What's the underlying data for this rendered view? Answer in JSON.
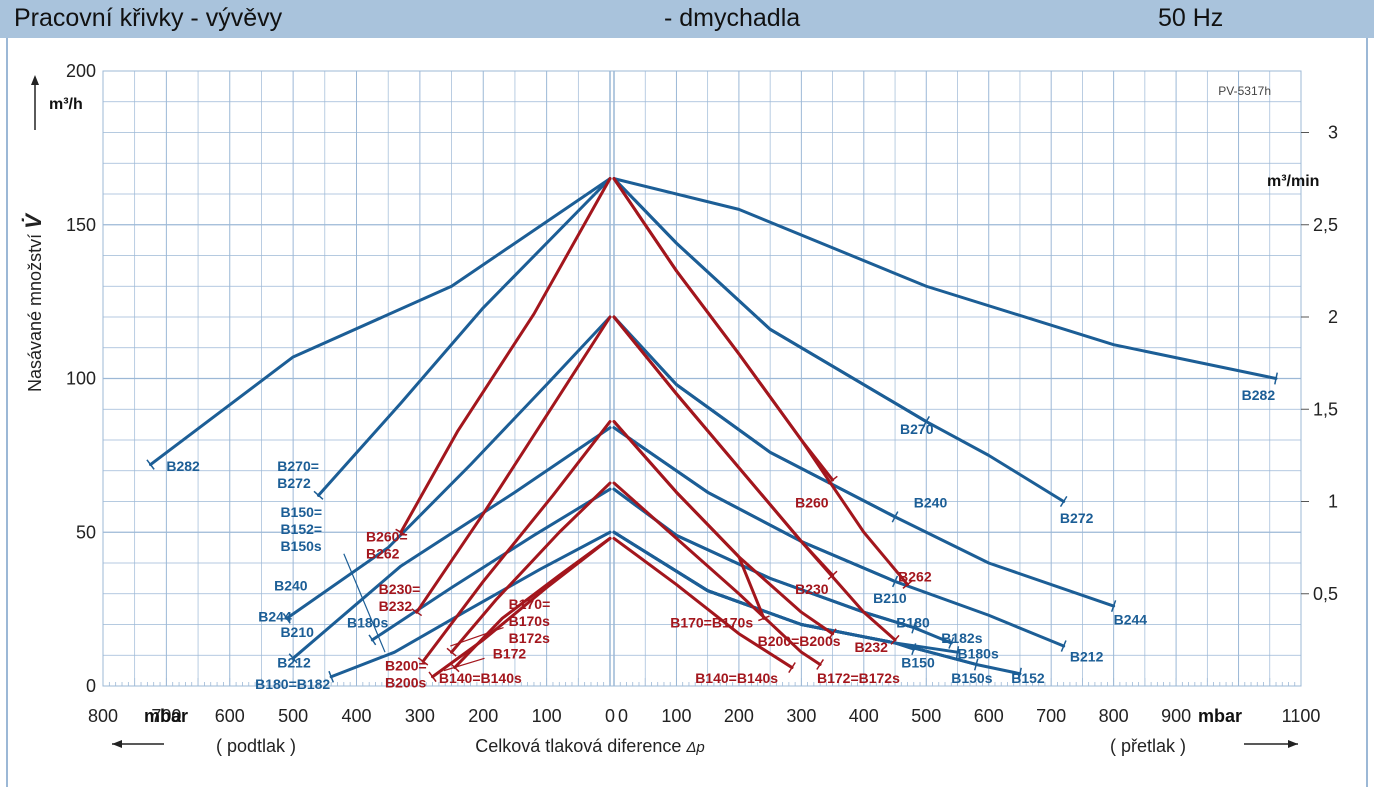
{
  "header": {
    "title_left": "Pracovní křivky  -  vývěvy",
    "title_mid": "-  dmychadla",
    "frequency": "50 Hz"
  },
  "chart_data": {
    "type": "line",
    "code": "PV-5317h",
    "ylabel": "Nasávané množství",
    "ylabel_symbol": "V̇",
    "ylabel_unit": "m³/h",
    "ylabel_right_unit": "m³/min",
    "xlabel": "Celková tlaková diference",
    "xlabel_symbol": "Δp",
    "x_unit": "mbar",
    "left_region": "( podtlak )",
    "right_region": "( přetlak )",
    "left_xlim": [
      800,
      0
    ],
    "right_xlim": [
      0,
      1100
    ],
    "ylim": [
      0,
      200
    ],
    "left_xticks": [
      "800",
      "700",
      "600",
      "500",
      "400",
      "300",
      "200",
      "100",
      "0"
    ],
    "right_xticks": [
      "0",
      "100",
      "200",
      "300",
      "400",
      "500",
      "600",
      "700",
      "800",
      "900",
      "1100"
    ],
    "yticks": [
      "0",
      "50",
      "100",
      "150",
      "200"
    ],
    "yticks_right": [
      "0,5",
      "1",
      "1,5",
      "2",
      "2,5",
      "3"
    ],
    "colors": {
      "blue": "#1c5e96",
      "red": "#a3161d",
      "grid": "#9cb8d6",
      "frame": "#1c5e96"
    },
    "vacuum_series": [
      {
        "name": "B282",
        "color": "blue",
        "points": [
          [
            0,
            165
          ],
          [
            250,
            130
          ],
          [
            500,
            107
          ],
          [
            725,
            72
          ]
        ],
        "label": "B282",
        "label_at": [
          700,
          70
        ]
      },
      {
        "name": "B270=B272",
        "color": "blue",
        "points": [
          [
            0,
            165
          ],
          [
            200,
            123
          ],
          [
            330,
            92
          ],
          [
            460,
            62
          ]
        ],
        "label_lines": [
          "B270=",
          "B272"
        ],
        "label_at": [
          525,
          70
        ]
      },
      {
        "name": "B240/B244",
        "color": "blue",
        "points": [
          [
            0,
            120
          ],
          [
            100,
            98
          ],
          [
            220,
            72
          ],
          [
            350,
            45
          ],
          [
            510,
            22
          ]
        ],
        "label": "B240",
        "label_at": [
          530,
          31
        ],
        "label2": "B244",
        "label2_at": [
          555,
          21
        ]
      },
      {
        "name": "B210/B212",
        "color": "blue",
        "points": [
          [
            0,
            84
          ],
          [
            150,
            63
          ],
          [
            330,
            39
          ],
          [
            500,
            9
          ]
        ],
        "label": "B210",
        "label_at": [
          520,
          16
        ],
        "label2": "B212",
        "label2_at": [
          525,
          6
        ]
      },
      {
        "name": "B150=B152=B150s",
        "color": "blue",
        "points": [
          [
            0,
            64
          ],
          [
            120,
            49
          ],
          [
            250,
            32
          ],
          [
            375,
            15
          ]
        ],
        "label_lines": [
          "B150=",
          "B152=",
          "B150s"
        ],
        "label_at": [
          520,
          55
        ],
        "label2": "B180s",
        "label2_at": [
          415,
          19
        ],
        "leader": [
          [
            420,
            43
          ],
          [
            355,
            11
          ]
        ]
      },
      {
        "name": "B180=B182",
        "color": "blue",
        "points": [
          [
            0,
            50
          ],
          [
            110,
            38
          ],
          [
            230,
            24
          ],
          [
            340,
            11
          ],
          [
            440,
            3
          ]
        ],
        "label": "B180=B182",
        "label_at": [
          560,
          -1
        ]
      },
      {
        "name": "B260=B262",
        "color": "red",
        "points": [
          [
            0,
            165
          ],
          [
            120,
            121
          ],
          [
            240,
            83
          ],
          [
            330,
            50
          ]
        ],
        "label_lines": [
          "B260=",
          "B262"
        ],
        "label_at": [
          385,
          47
        ]
      },
      {
        "name": "B230=B232",
        "color": "red",
        "points": [
          [
            0,
            120
          ],
          [
            100,
            88
          ],
          [
            200,
            56
          ],
          [
            305,
            24
          ]
        ],
        "label_lines": [
          "B230=",
          "B232"
        ],
        "label_at": [
          365,
          30
        ]
      },
      {
        "name": "B200=B200s",
        "color": "red",
        "points": [
          [
            0,
            86
          ],
          [
            90,
            62
          ],
          [
            200,
            34
          ],
          [
            295,
            8
          ]
        ],
        "label_lines": [
          "B200=",
          "B200s"
        ],
        "label_at": [
          355,
          5
        ]
      },
      {
        "name": "B170=B170s=B172s",
        "color": "red",
        "points": [
          [
            0,
            66
          ],
          [
            80,
            50
          ],
          [
            180,
            28
          ],
          [
            250,
            11
          ]
        ],
        "label_lines": [
          "B170=",
          "B170s",
          "B172s"
        ],
        "label_at": [
          160,
          25
        ],
        "leader": [
          [
            168,
            19
          ],
          [
            252,
            13
          ]
        ]
      },
      {
        "name": "B172",
        "color": "red",
        "points": [
          [
            0,
            48
          ],
          [
            80,
            36
          ],
          [
            170,
            22
          ],
          [
            245,
            6
          ]
        ],
        "label": "B172",
        "label_at": [
          185,
          9
        ],
        "leader": [
          [
            198,
            9
          ],
          [
            262,
            5
          ]
        ]
      },
      {
        "name": "B140=B140s",
        "color": "red",
        "points": [
          [
            0,
            48
          ],
          [
            100,
            32
          ],
          [
            200,
            15
          ],
          [
            280,
            3
          ]
        ],
        "label": "B140=B140s",
        "label_at": [
          270,
          1
        ]
      }
    ],
    "pressure_series": [
      {
        "name": "B282",
        "color": "blue",
        "points": [
          [
            0,
            165
          ],
          [
            200,
            155
          ],
          [
            500,
            130
          ],
          [
            800,
            111
          ],
          [
            1060,
            100
          ]
        ],
        "label": "B282",
        "label_at": [
          1005,
          93
        ]
      },
      {
        "name": "B270",
        "color": "blue",
        "points": [
          [
            0,
            165
          ],
          [
            100,
            144
          ],
          [
            250,
            116
          ],
          [
            500,
            86
          ]
        ],
        "label": "B270",
        "label_at": [
          458,
          82
        ]
      },
      {
        "name": "B272",
        "color": "blue",
        "points": [
          [
            0,
            165
          ],
          [
            100,
            144
          ],
          [
            250,
            116
          ],
          [
            500,
            86
          ],
          [
            600,
            75
          ],
          [
            720,
            60
          ]
        ],
        "label": "B272",
        "label_at": [
          714,
          53
        ]
      },
      {
        "name": "B240",
        "color": "blue",
        "points": [
          [
            0,
            120
          ],
          [
            100,
            98
          ],
          [
            250,
            76
          ],
          [
            450,
            55
          ]
        ],
        "label": "B240",
        "label_at": [
          480,
          58
        ]
      },
      {
        "name": "B244",
        "color": "blue",
        "points": [
          [
            0,
            120
          ],
          [
            100,
            98
          ],
          [
            250,
            76
          ],
          [
            450,
            55
          ],
          [
            600,
            40
          ],
          [
            800,
            26
          ]
        ],
        "label": "B244",
        "label_at": [
          800,
          20
        ]
      },
      {
        "name": "B210",
        "color": "blue",
        "points": [
          [
            0,
            84
          ],
          [
            150,
            63
          ],
          [
            300,
            47
          ],
          [
            450,
            34
          ]
        ],
        "label": "B210",
        "label_at": [
          415,
          27
        ]
      },
      {
        "name": "B212",
        "color": "blue",
        "points": [
          [
            0,
            84
          ],
          [
            150,
            63
          ],
          [
            300,
            47
          ],
          [
            450,
            34
          ],
          [
            600,
            23
          ],
          [
            720,
            13
          ]
        ],
        "label": "B212",
        "label_at": [
          730,
          8
        ]
      },
      {
        "name": "B180",
        "color": "blue",
        "points": [
          [
            0,
            64
          ],
          [
            100,
            49
          ],
          [
            250,
            35
          ],
          [
            400,
            24
          ],
          [
            480,
            19
          ]
        ],
        "label": "B180",
        "label_at": [
          452,
          19
        ]
      },
      {
        "name": "B182s",
        "color": "blue",
        "points": [
          [
            0,
            64
          ],
          [
            100,
            49
          ],
          [
            250,
            35
          ],
          [
            400,
            24
          ],
          [
            480,
            19
          ],
          [
            540,
            14
          ]
        ],
        "label": "B182s",
        "label_at": [
          524,
          14
        ]
      },
      {
        "name": "B180s",
        "color": "blue",
        "points": [
          [
            0,
            50
          ],
          [
            150,
            31
          ],
          [
            300,
            20
          ],
          [
            450,
            14
          ],
          [
            550,
            11
          ]
        ],
        "label": "B180s",
        "label_at": [
          550,
          9
        ]
      },
      {
        "name": "B150",
        "color": "blue",
        "points": [
          [
            0,
            50
          ],
          [
            150,
            31
          ],
          [
            300,
            20
          ],
          [
            450,
            14
          ],
          [
            480,
            12
          ]
        ],
        "label": "B150",
        "label_at": [
          460,
          6
        ]
      },
      {
        "name": "B150s",
        "color": "blue",
        "points": [
          [
            0,
            50
          ],
          [
            150,
            31
          ],
          [
            300,
            20
          ],
          [
            450,
            14
          ],
          [
            580,
            7
          ]
        ],
        "label": "B150s",
        "label_at": [
          540,
          1
        ]
      },
      {
        "name": "B152",
        "color": "blue",
        "points": [
          [
            0,
            50
          ],
          [
            150,
            31
          ],
          [
            300,
            20
          ],
          [
            450,
            14
          ],
          [
            580,
            7
          ],
          [
            650,
            4
          ]
        ],
        "label": "B152",
        "label_at": [
          636,
          1
        ]
      },
      {
        "name": "B260",
        "color": "red",
        "points": [
          [
            0,
            165
          ],
          [
            100,
            135
          ],
          [
            200,
            108
          ],
          [
            300,
            80
          ],
          [
            350,
            67
          ]
        ],
        "label": "B260",
        "label_at": [
          290,
          58
        ]
      },
      {
        "name": "B262",
        "color": "red",
        "points": [
          [
            0,
            165
          ],
          [
            100,
            135
          ],
          [
            200,
            108
          ],
          [
            300,
            80
          ],
          [
            400,
            50
          ],
          [
            470,
            33
          ]
        ],
        "label": "B262",
        "label_at": [
          455,
          34
        ]
      },
      {
        "name": "B230",
        "color": "red",
        "points": [
          [
            0,
            120
          ],
          [
            100,
            95
          ],
          [
            200,
            71
          ],
          [
            300,
            47
          ],
          [
            350,
            36
          ]
        ],
        "label": "B230",
        "label_at": [
          290,
          30
        ]
      },
      {
        "name": "B232",
        "color": "red",
        "points": [
          [
            0,
            120
          ],
          [
            100,
            95
          ],
          [
            200,
            71
          ],
          [
            300,
            47
          ],
          [
            400,
            24
          ],
          [
            450,
            15
          ]
        ],
        "label": "B232",
        "label_at": [
          385,
          11
        ]
      },
      {
        "name": "B170=B170s",
        "color": "red",
        "points": [
          [
            0,
            86
          ],
          [
            100,
            63
          ],
          [
            200,
            42
          ],
          [
            240,
            22
          ]
        ],
        "label": "B170=B170s",
        "label_at": [
          90,
          19
        ]
      },
      {
        "name": "B200=B200s",
        "color": "red",
        "points": [
          [
            0,
            86
          ],
          [
            100,
            63
          ],
          [
            200,
            42
          ],
          [
            300,
            24
          ],
          [
            350,
            17
          ]
        ],
        "label": "B200=B200s",
        "label_at": [
          230,
          13
        ]
      },
      {
        "name": "B172=B172s",
        "color": "red",
        "points": [
          [
            0,
            66
          ],
          [
            100,
            48
          ],
          [
            200,
            30
          ],
          [
            300,
            11
          ],
          [
            330,
            7
          ]
        ],
        "label": "B172=B172s",
        "label_at": [
          325,
          1
        ]
      },
      {
        "name": "B140=B140s",
        "color": "red",
        "points": [
          [
            0,
            48
          ],
          [
            100,
            33
          ],
          [
            200,
            17
          ],
          [
            285,
            6
          ]
        ],
        "label": "B140=B140s",
        "label_at": [
          130,
          1
        ]
      }
    ]
  }
}
